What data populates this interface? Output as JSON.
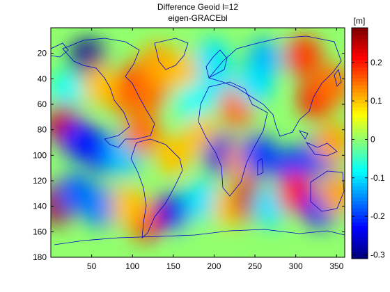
{
  "title": {
    "line1": "Difference Geoid l=12",
    "line2": "eigen-GRACEbl"
  },
  "colorbar": {
    "unit_label": "[m]",
    "ticks": [
      "0.2",
      "0.1",
      "0",
      "-0.1",
      "-0.2",
      "-0.3"
    ],
    "range": [
      -0.31,
      0.29
    ],
    "colormap": "jet"
  },
  "x_axis": {
    "ticks": [
      "50",
      "100",
      "150",
      "200",
      "250",
      "300",
      "350"
    ],
    "range": [
      0,
      360
    ]
  },
  "y_axis": {
    "ticks": [
      "20",
      "40",
      "60",
      "80",
      "100",
      "120",
      "140",
      "160",
      "180"
    ],
    "range": [
      0,
      180
    ],
    "reversed": true
  },
  "chart_data": {
    "type": "heatmap",
    "title": "Difference Geoid l=12 eigen-GRACEbl",
    "xlabel": "",
    "ylabel": "",
    "colorbar_label": "[m]",
    "xlim": [
      0,
      360
    ],
    "ylim": [
      180,
      0
    ],
    "clim": [
      -0.31,
      0.29
    ],
    "coastline_color": "#0000cc",
    "features": [
      {
        "x": 45,
        "y": 25,
        "value": -0.3
      },
      {
        "x": 90,
        "y": 52,
        "value": 0.15
      },
      {
        "x": 108,
        "y": 42,
        "value": 0.2
      },
      {
        "x": 120,
        "y": 50,
        "value": 0.15
      },
      {
        "x": 130,
        "y": 28,
        "value": 0.12
      },
      {
        "x": 20,
        "y": 50,
        "value": -0.08
      },
      {
        "x": 60,
        "y": 45,
        "value": 0.1
      },
      {
        "x": 160,
        "y": 35,
        "value": 0.1
      },
      {
        "x": 198,
        "y": 25,
        "value": -0.1
      },
      {
        "x": 205,
        "y": 45,
        "value": -0.1
      },
      {
        "x": 228,
        "y": 62,
        "value": 0.15
      },
      {
        "x": 262,
        "y": 25,
        "value": -0.13
      },
      {
        "x": 250,
        "y": 45,
        "value": -0.1
      },
      {
        "x": 310,
        "y": 22,
        "value": 0.18
      },
      {
        "x": 325,
        "y": 55,
        "value": 0.2
      },
      {
        "x": 345,
        "y": 45,
        "value": 0.15
      },
      {
        "x": 15,
        "y": 75,
        "value": 0.25
      },
      {
        "x": 35,
        "y": 88,
        "value": -0.22
      },
      {
        "x": 65,
        "y": 98,
        "value": -0.23
      },
      {
        "x": 90,
        "y": 100,
        "value": -0.12
      },
      {
        "x": 150,
        "y": 100,
        "value": 0.1
      },
      {
        "x": 112,
        "y": 82,
        "value": 0.15
      },
      {
        "x": 175,
        "y": 60,
        "value": -0.08
      },
      {
        "x": 185,
        "y": 85,
        "value": 0.1
      },
      {
        "x": 210,
        "y": 100,
        "value": -0.25
      },
      {
        "x": 235,
        "y": 105,
        "value": 0.12
      },
      {
        "x": 255,
        "y": 100,
        "value": -0.2
      },
      {
        "x": 295,
        "y": 110,
        "value": -0.2
      },
      {
        "x": 330,
        "y": 100,
        "value": -0.2
      },
      {
        "x": 345,
        "y": 90,
        "value": 0.12
      },
      {
        "x": 8,
        "y": 138,
        "value": 0.27
      },
      {
        "x": 30,
        "y": 130,
        "value": -0.18
      },
      {
        "x": 60,
        "y": 140,
        "value": -0.16
      },
      {
        "x": 115,
        "y": 150,
        "value": 0.22
      },
      {
        "x": 95,
        "y": 140,
        "value": 0.1
      },
      {
        "x": 152,
        "y": 145,
        "value": -0.25
      },
      {
        "x": 185,
        "y": 135,
        "value": -0.1
      },
      {
        "x": 220,
        "y": 140,
        "value": 0.1
      },
      {
        "x": 245,
        "y": 135,
        "value": 0.25
      },
      {
        "x": 268,
        "y": 140,
        "value": -0.1
      },
      {
        "x": 300,
        "y": 130,
        "value": 0.2
      },
      {
        "x": 330,
        "y": 140,
        "value": -0.23
      },
      {
        "x": 350,
        "y": 130,
        "value": 0.12
      },
      {
        "x": 180,
        "y": 165,
        "value": 0.0
      }
    ]
  }
}
